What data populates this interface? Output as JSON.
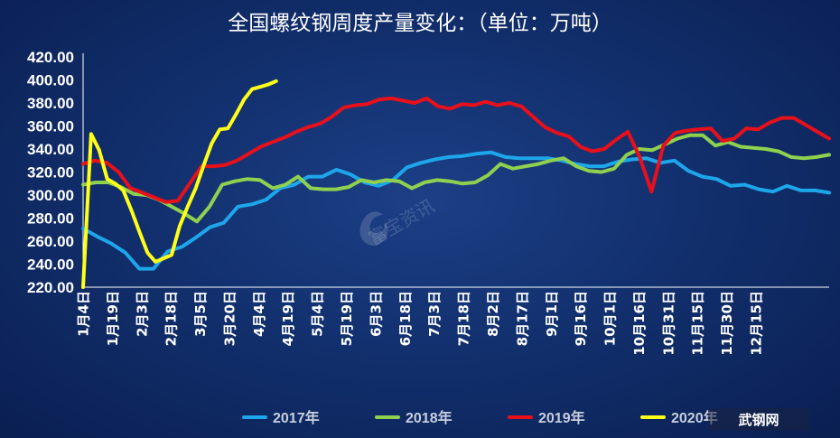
{
  "chart_data": {
    "type": "line",
    "title": "全国螺纹钢周度产量变化：（单位：万吨）",
    "ylim": [
      220,
      420
    ],
    "yticks": [
      "420.00",
      "400.00",
      "380.00",
      "360.00",
      "340.00",
      "320.00",
      "300.00",
      "280.00",
      "260.00",
      "240.00",
      "220.00"
    ],
    "x_weeks": 52,
    "x_labels": [
      "1月4日",
      "1月19日",
      "2月3日",
      "2月18日",
      "3月5日",
      "3月20日",
      "4月4日",
      "4月19日",
      "5月4日",
      "5月19日",
      "6月3日",
      "6月18日",
      "7月3日",
      "7月18日",
      "8月2日",
      "8月17日",
      "9月1日",
      "9月16日",
      "10月1日",
      "10月16日",
      "10月31日",
      "11月15日",
      "11月30日",
      "12月15日"
    ],
    "grid": false,
    "legend": "bottom",
    "series": [
      {
        "name": "2017年",
        "color": "#1ea6ea",
        "values": [
          271,
          264,
          258,
          250,
          236,
          236,
          251,
          255,
          263,
          272,
          276,
          290,
          292,
          296,
          306,
          309,
          316,
          316,
          322,
          318,
          311,
          308,
          313,
          324,
          328,
          331,
          333,
          334,
          336,
          337,
          333,
          332,
          332,
          332,
          330,
          327,
          325,
          325,
          329,
          331,
          332,
          328,
          330,
          321,
          316,
          314,
          308,
          309,
          305,
          303,
          308,
          304,
          304,
          302
        ]
      },
      {
        "name": "2018年",
        "color": "#8fd14f",
        "values": [
          309,
          311,
          311,
          307,
          301,
          300,
          296,
          290,
          284,
          277,
          290,
          309,
          312,
          314,
          313,
          306,
          309,
          316,
          306,
          305,
          305,
          307,
          313,
          311,
          313,
          312,
          306,
          311,
          313,
          312,
          310,
          311,
          317,
          327,
          323,
          325,
          327,
          330,
          332,
          325,
          321,
          320,
          323,
          335,
          340,
          339,
          344,
          349,
          352,
          352,
          343,
          346,
          342,
          341,
          340,
          338,
          333,
          332,
          333,
          335
        ]
      },
      {
        "name": "2019年",
        "color": "#e8101a",
        "values": [
          327,
          330,
          328,
          320,
          306,
          302,
          298,
          294,
          295,
          310,
          325,
          325,
          326,
          330,
          336,
          342,
          346,
          350,
          355,
          359,
          362,
          368,
          376,
          378,
          379,
          383,
          384,
          382,
          380,
          384,
          377,
          375,
          379,
          378,
          381,
          378,
          380,
          377,
          368,
          359,
          354,
          351,
          342,
          338,
          340,
          348,
          355,
          333,
          303,
          343,
          354,
          356,
          357,
          358,
          347,
          349,
          358,
          357,
          363,
          367,
          367,
          361,
          355,
          349
        ]
      },
      {
        "name": "2020年",
        "color": "#ffff1a",
        "values": [
          220,
          353,
          339,
          314,
          310,
          304,
          287,
          268,
          250,
          242,
          245,
          248,
          273,
          290,
          306,
          326,
          345,
          357,
          358,
          370,
          383,
          392,
          394,
          396,
          399
        ]
      }
    ]
  },
  "watermark": "富宝资讯",
  "logo": "武钢网"
}
